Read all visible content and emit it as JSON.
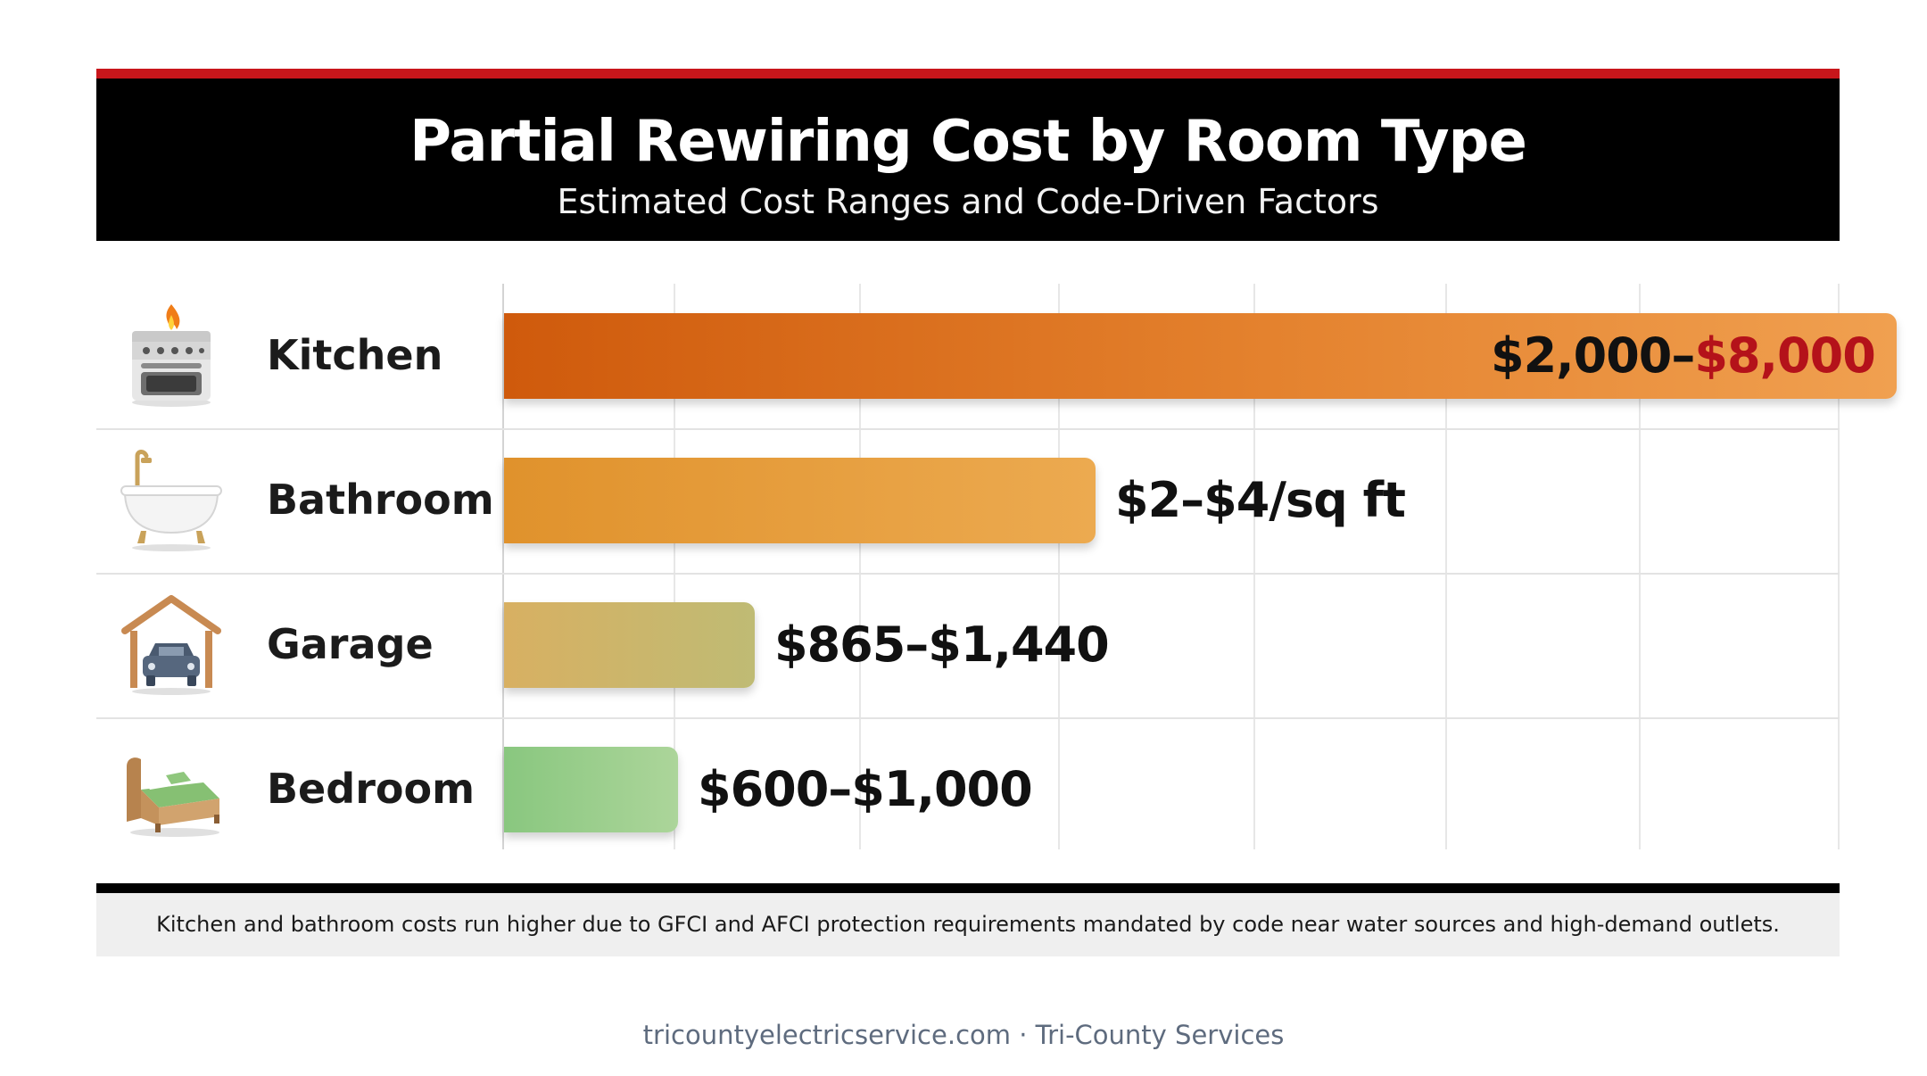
{
  "header": {
    "title": "Partial Rewiring Cost by Room Type",
    "subtitle": "Estimated Cost Ranges and Code-Driven Factors"
  },
  "chart_data": {
    "type": "bar",
    "orientation": "horizontal",
    "title": "Partial Rewiring Cost by Room Type",
    "subtitle": "Estimated Cost Ranges and Code-Driven Factors",
    "categories": [
      "Kitchen",
      "Bathroom",
      "Garage",
      "Bedroom"
    ],
    "values": [
      8000,
      3400,
      1440,
      1000
    ],
    "value_labels": [
      {
        "low": "$2,000–",
        "high": "$8,000"
      },
      {
        "low": "$2–$4/sq ft",
        "high": ""
      },
      {
        "low": "$865–$1,440",
        "high": ""
      },
      {
        "low": "$600–$1,000",
        "high": ""
      }
    ],
    "icons": [
      "stove-icon",
      "bathtub-icon",
      "garage-icon",
      "bed-icon"
    ],
    "xlim": [
      0,
      8200
    ],
    "grid": true,
    "colors": {
      "Kitchen": "#e07a28",
      "Bathroom": "#e8a040",
      "Garage": "#ccb66a",
      "Bedroom": "#9bcf8d",
      "highlight": "#b4121a"
    }
  },
  "note": "Kitchen and bathroom costs run higher due to GFCI and AFCI protection requirements mandated by code near water sources and high-demand outlets.",
  "footer": "tricountyelectricservice.com · Tri-County Services"
}
